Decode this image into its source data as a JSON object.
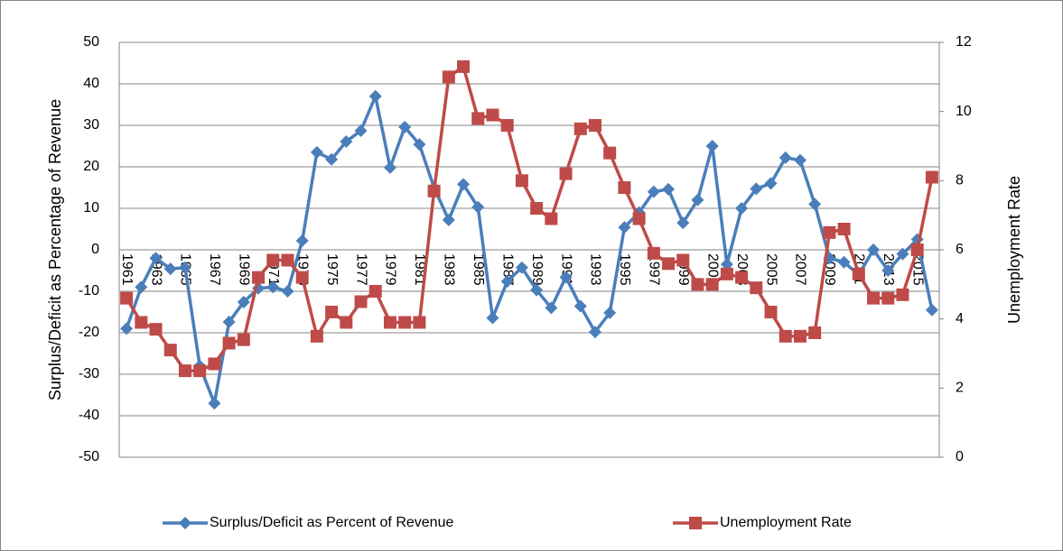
{
  "chart_data": {
    "type": "line",
    "y_label": "Surplus/Deficit as Percentage of Revenue",
    "y2_label": "Unemployment Rate",
    "categories": [
      "1961",
      null,
      "1963",
      null,
      "1965",
      null,
      "1967",
      null,
      "1969",
      null,
      "1971",
      null,
      "1973",
      null,
      "1975",
      null,
      "1977",
      null,
      "1979",
      null,
      "1981",
      null,
      "1983",
      null,
      "1985",
      null,
      "1987",
      null,
      "1989",
      null,
      "1991",
      null,
      "1993",
      null,
      "1995",
      null,
      "1997",
      null,
      "1999",
      null,
      "2001",
      null,
      "2003",
      null,
      "2005",
      null,
      "2007",
      null,
      "2009",
      null,
      "2011",
      null,
      "2013",
      null,
      "2015",
      null
    ],
    "series": [
      {
        "name": "Surplus/Deficit as Percent of Revenue",
        "color": "#4a7ebb",
        "marker": "diamond",
        "values": [
          -19,
          -9,
          -2,
          -4.6,
          -4.3,
          -28,
          -37,
          -17.4,
          -12.6,
          -9.3,
          -9,
          -10,
          2.2,
          23.5,
          21.8,
          26.1,
          28.7,
          37,
          19.8,
          29.6,
          25.4,
          15,
          7.2,
          15.8,
          10.3,
          -16.4,
          -7.6,
          -4.3,
          -9.7,
          -14,
          -6.6,
          -13.6,
          -19.8,
          -15.2,
          5.4,
          9,
          14,
          14.6,
          6.5,
          12,
          25,
          -3.5,
          10,
          14.7,
          16,
          22.2,
          21.6,
          11,
          -2,
          -3,
          -6,
          0,
          -5,
          -1,
          2.5,
          -14.5
        ]
      },
      {
        "name": "Unemployment Rate",
        "color": "#be4b48",
        "marker": "square",
        "axis": "y2",
        "values": [
          4.6,
          3.9,
          3.7,
          3.1,
          2.5,
          2.5,
          2.7,
          3.3,
          3.4,
          5.2,
          5.7,
          5.7,
          5.2,
          3.5,
          4.2,
          3.9,
          4.5,
          4.8,
          3.9,
          3.9,
          3.9,
          7.7,
          11.0,
          11.3,
          9.8,
          9.9,
          9.6,
          8.0,
          7.2,
          6.9,
          8.2,
          9.5,
          9.6,
          8.8,
          7.8,
          6.9,
          5.9,
          5.6,
          5.7,
          5.0,
          5.0,
          5.3,
          5.2,
          4.9,
          4.2,
          3.5,
          3.5,
          3.6,
          6.5,
          6.6,
          5.3,
          4.6,
          4.6,
          4.7,
          6.0,
          8.1
        ]
      }
    ],
    "ylim": [
      -50,
      50
    ],
    "yticks": [
      -50,
      -40,
      -30,
      -20,
      -10,
      0,
      10,
      20,
      30,
      40,
      50
    ],
    "y2lim": [
      0,
      12
    ],
    "y2ticks": [
      0,
      2,
      4,
      6,
      8,
      10,
      12
    ],
    "grid": true,
    "legend": "bottom"
  }
}
